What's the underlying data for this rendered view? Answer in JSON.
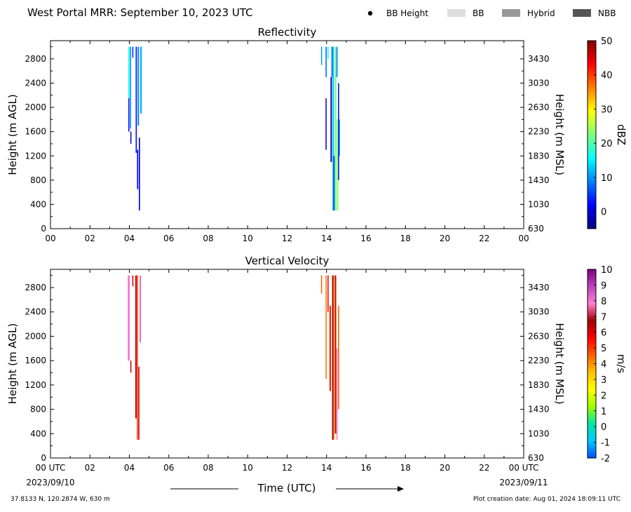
{
  "header": {
    "title": "West Portal MRR:  September 10, 2023 UTC",
    "legend": [
      {
        "label": "BB Height",
        "marker": "dot",
        "color": "#000000"
      },
      {
        "label": "BB",
        "marker": "box",
        "color": "#dedede"
      },
      {
        "label": "Hybrid",
        "marker": "box",
        "color": "#999999"
      },
      {
        "label": "NBB",
        "marker": "box",
        "color": "#555555"
      }
    ]
  },
  "footer": {
    "location": "37.8133 N, 120.2874 W, 630 m",
    "creation": "Plot creation date: Aug 01, 2024 18:09:11 UTC",
    "xlabel": "Time (UTC)",
    "start_date": "2023/09/10",
    "end_date": "2023/09/11"
  },
  "chart_data": [
    {
      "type": "heatmap",
      "title": "Reflectivity",
      "ylabel": "Height (m AGL)",
      "ylabel_right": "Height (m MSL)",
      "xlim": [
        0,
        24
      ],
      "ylim": [
        0,
        3100
      ],
      "x_ticks": [
        "00",
        "02",
        "04",
        "06",
        "08",
        "10",
        "12",
        "14",
        "16",
        "18",
        "20",
        "22",
        "00"
      ],
      "y_ticks": [
        0,
        400,
        800,
        1200,
        1600,
        2000,
        2400,
        2800
      ],
      "y_ticks_right": [
        630,
        1030,
        1430,
        1830,
        2230,
        2630,
        3030,
        3430
      ],
      "colorbar": {
        "label": "dBZ",
        "range": [
          -5,
          50
        ],
        "ticks": [
          0,
          10,
          20,
          30,
          40,
          50
        ],
        "colormap": [
          "#00007f",
          "#0000ff",
          "#007fff",
          "#00ffff",
          "#7fff7f",
          "#ffff00",
          "#ff7f00",
          "#ff0000",
          "#7f0000"
        ]
      },
      "cells": [
        {
          "t": 3.95,
          "dt": 0.06,
          "h0": 2150,
          "h1": 3000,
          "v": 16
        },
        {
          "t": 3.95,
          "dt": 0.05,
          "h0": 1600,
          "h1": 2150,
          "v": 1
        },
        {
          "t": 4.03,
          "dt": 0.06,
          "h0": 1650,
          "h1": 3000,
          "v": 10
        },
        {
          "t": 4.05,
          "dt": 0.04,
          "h0": 1400,
          "h1": 1600,
          "v": -2
        },
        {
          "t": 4.15,
          "dt": 0.03,
          "h0": 2820,
          "h1": 3000,
          "v": 4
        },
        {
          "t": 4.32,
          "dt": 0.06,
          "h0": 1250,
          "h1": 3000,
          "v": 3
        },
        {
          "t": 4.39,
          "dt": 0.06,
          "h0": 650,
          "h1": 1300,
          "v": 1
        },
        {
          "t": 4.42,
          "dt": 0.07,
          "h0": 1700,
          "h1": 3000,
          "v": 9
        },
        {
          "t": 4.48,
          "dt": 0.06,
          "h0": 300,
          "h1": 1500,
          "v": 2
        },
        {
          "t": 4.55,
          "dt": 0.08,
          "h0": 1900,
          "h1": 3000,
          "v": 11
        },
        {
          "t": 13.72,
          "dt": 0.05,
          "h0": 2700,
          "h1": 3000,
          "v": 10
        },
        {
          "t": 13.95,
          "dt": 0.06,
          "h0": 2500,
          "h1": 3000,
          "v": 8
        },
        {
          "t": 13.95,
          "dt": 0.05,
          "h0": 1300,
          "h1": 2150,
          "v": 0
        },
        {
          "t": 14.05,
          "dt": 0.05,
          "h0": 2800,
          "h1": 3000,
          "v": 16
        },
        {
          "t": 14.2,
          "dt": 0.07,
          "h0": 1100,
          "h1": 2500,
          "v": -1
        },
        {
          "t": 14.25,
          "dt": 0.06,
          "h0": 2500,
          "h1": 3000,
          "v": 6
        },
        {
          "t": 14.3,
          "dt": 0.08,
          "h0": 300,
          "h1": 3000,
          "v": 13
        },
        {
          "t": 14.35,
          "dt": 0.06,
          "h0": 300,
          "h1": 1200,
          "v": 4
        },
        {
          "t": 14.42,
          "dt": 0.08,
          "h0": 300,
          "h1": 3000,
          "v": 22
        },
        {
          "t": 14.5,
          "dt": 0.06,
          "h0": 2500,
          "h1": 3000,
          "v": 9
        },
        {
          "t": 14.52,
          "dt": 0.08,
          "h0": 300,
          "h1": 1800,
          "v": 24
        },
        {
          "t": 14.58,
          "dt": 0.06,
          "h0": 800,
          "h1": 2400,
          "v": 4
        },
        {
          "t": 14.62,
          "dt": 0.06,
          "h0": 1200,
          "h1": 1800,
          "v": 8
        }
      ]
    },
    {
      "type": "heatmap",
      "title": "Vertical Velocity",
      "ylabel": "Height (m AGL)",
      "ylabel_right": "Height (m MSL)",
      "xlim": [
        0,
        24
      ],
      "ylim": [
        0,
        3100
      ],
      "x_ticks": [
        "00 UTC",
        "02",
        "04",
        "06",
        "08",
        "10",
        "12",
        "14",
        "16",
        "18",
        "20",
        "22",
        "00 UTC"
      ],
      "y_ticks": [
        0,
        400,
        800,
        1200,
        1600,
        2000,
        2400,
        2800
      ],
      "y_ticks_right": [
        630,
        1030,
        1430,
        1830,
        2230,
        2630,
        3030,
        3430
      ],
      "colorbar": {
        "label": "m/s",
        "range": [
          -2,
          10
        ],
        "ticks": [
          -2,
          -1,
          0,
          1,
          2,
          3,
          4,
          5,
          6,
          7,
          8,
          9,
          10
        ],
        "colormap": [
          "#0050ff",
          "#00c8ff",
          "#00e8a0",
          "#a0ff00",
          "#ffff00",
          "#ffc000",
          "#ff6000",
          "#ff0000",
          "#a00000",
          "#ff80d0",
          "#c040c0",
          "#800080"
        ]
      },
      "cells": [
        {
          "t": 3.92,
          "dt": 0.1,
          "h0": 1600,
          "h1": 3000,
          "v": 8.0
        },
        {
          "t": 4.05,
          "dt": 0.05,
          "h0": 1400,
          "h1": 1600,
          "v": 6.3
        },
        {
          "t": 4.15,
          "dt": 0.04,
          "h0": 2820,
          "h1": 3000,
          "v": 6.3
        },
        {
          "t": 4.3,
          "dt": 0.07,
          "h0": 650,
          "h1": 3000,
          "v": 6.3
        },
        {
          "t": 4.38,
          "dt": 0.05,
          "h0": 300,
          "h1": 3000,
          "v": 5.0
        },
        {
          "t": 4.45,
          "dt": 0.06,
          "h0": 300,
          "h1": 1500,
          "v": 6.0
        },
        {
          "t": 4.52,
          "dt": 0.07,
          "h0": 1900,
          "h1": 3000,
          "v": 7.6
        },
        {
          "t": 13.72,
          "dt": 0.05,
          "h0": 2700,
          "h1": 3000,
          "v": 4.6
        },
        {
          "t": 13.95,
          "dt": 0.06,
          "h0": 1300,
          "h1": 3000,
          "v": 4.2
        },
        {
          "t": 14.05,
          "dt": 0.05,
          "h0": 2400,
          "h1": 3000,
          "v": 6.1
        },
        {
          "t": 14.15,
          "dt": 0.07,
          "h0": 1100,
          "h1": 2500,
          "v": 5.5
        },
        {
          "t": 14.28,
          "dt": 0.07,
          "h0": 300,
          "h1": 3000,
          "v": 6.6
        },
        {
          "t": 14.35,
          "dt": 0.05,
          "h0": 300,
          "h1": 3000,
          "v": 4.0
        },
        {
          "t": 14.42,
          "dt": 0.07,
          "h0": 400,
          "h1": 3000,
          "v": 6.4
        },
        {
          "t": 14.5,
          "dt": 0.06,
          "h0": 300,
          "h1": 1800,
          "v": 7.8
        },
        {
          "t": 14.58,
          "dt": 0.06,
          "h0": 800,
          "h1": 2500,
          "v": 4.4
        }
      ]
    }
  ]
}
